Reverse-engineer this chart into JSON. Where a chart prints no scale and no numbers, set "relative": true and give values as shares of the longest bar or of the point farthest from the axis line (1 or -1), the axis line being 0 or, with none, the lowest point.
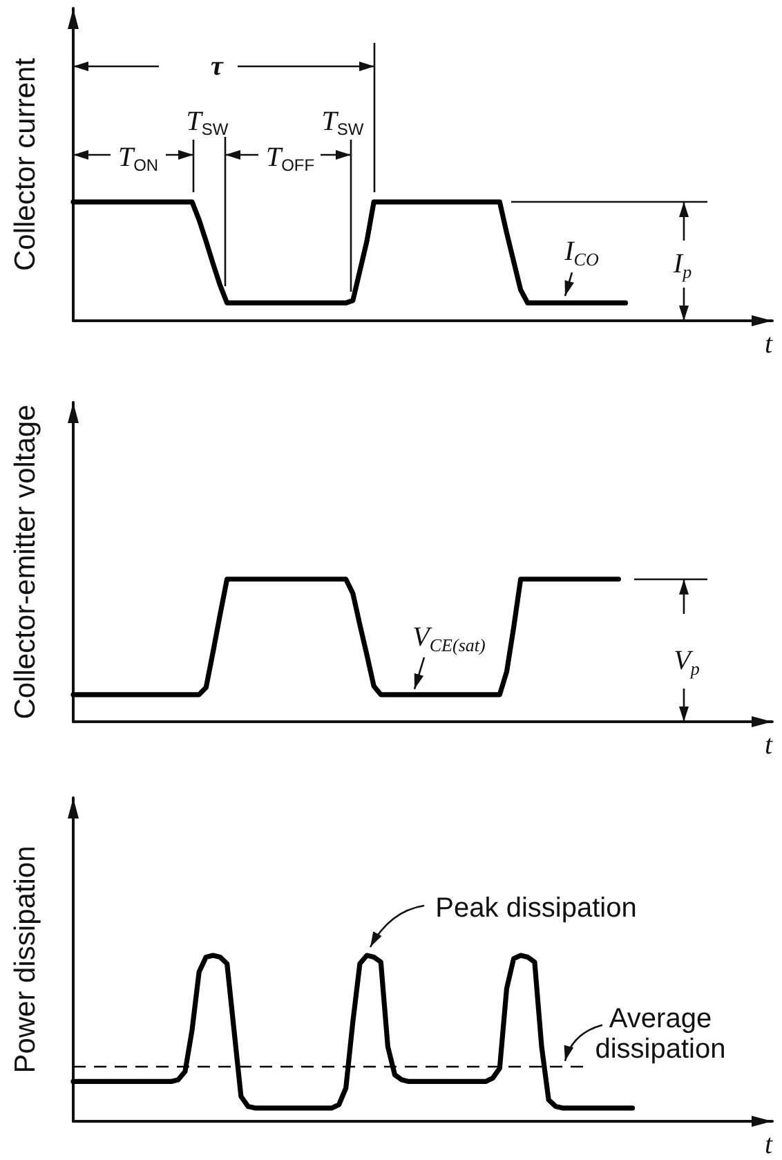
{
  "chart_data": [
    {
      "type": "line",
      "ylabel": "Collector current",
      "xlabel": "t",
      "relative": true,
      "color": "#000000",
      "categories": [
        null,
        null,
        null,
        null,
        null,
        null,
        null,
        null,
        null,
        null,
        null,
        null,
        null,
        null,
        null,
        null,
        null,
        null,
        null,
        null,
        null,
        null,
        null,
        null,
        null,
        null,
        null,
        null,
        null,
        null,
        null,
        null,
        null,
        null,
        null,
        null,
        null,
        null,
        null,
        null,
        null,
        null,
        null,
        null,
        null,
        null,
        null,
        null,
        null,
        null,
        null,
        null,
        null,
        null,
        null,
        null,
        null,
        null,
        null,
        null,
        null,
        null,
        null,
        null,
        null,
        null,
        null,
        null,
        null,
        null,
        null,
        null,
        null,
        null,
        null,
        null,
        null,
        null,
        null,
        null,
        null,
        null,
        null,
        null,
        null,
        null,
        null,
        null,
        null,
        null,
        null,
        null,
        null,
        null,
        null,
        null,
        null,
        null,
        null,
        null,
        null
      ],
      "values": [
        1,
        1,
        1,
        1,
        1,
        1,
        1,
        1,
        1,
        1,
        1,
        1,
        1,
        1,
        1,
        1,
        1,
        1,
        0.85,
        0.67,
        0.48,
        0.3,
        0.15,
        0.15,
        0.15,
        0.15,
        0.15,
        0.15,
        0.15,
        0.15,
        0.15,
        0.15,
        0.15,
        0.15,
        0.15,
        0.15,
        0.15,
        0.15,
        0.15,
        0.15,
        0.17,
        0.42,
        0.67,
        1,
        1,
        1,
        1,
        1,
        1,
        1,
        1,
        1,
        1,
        1,
        1,
        1,
        1,
        1,
        1,
        1,
        1,
        1,
        0.74,
        0.5,
        0.26,
        0.15,
        0.15,
        0.15,
        0.15,
        0.15,
        0.15,
        0.15,
        0.15,
        0.15,
        0.15,
        0.15,
        0.15,
        0.15,
        0.15,
        0.15,
        null,
        null,
        null,
        null,
        null,
        null,
        null,
        null,
        null,
        null,
        null,
        null,
        null,
        null,
        null,
        null,
        null,
        null,
        null,
        null,
        null
      ],
      "annotations": [
        "τ",
        "T$_{SW}$",
        "T$_{SW}$",
        "T$_{ON}$",
        "T$_{OFF}$",
        {
          "text": "I$_{CO}$",
          "y": 0.15
        },
        "I$_{p}$"
      ]
    },
    {
      "type": "line",
      "ylabel": "Collector-emitter voltage",
      "xlabel": "t",
      "relative": true,
      "color": "#000000",
      "categories": [
        null,
        null,
        null,
        null,
        null,
        null,
        null,
        null,
        null,
        null,
        null,
        null,
        null,
        null,
        null,
        null,
        null,
        null,
        null,
        null,
        null,
        null,
        null,
        null,
        null,
        null,
        null,
        null,
        null,
        null,
        null,
        null,
        null,
        null,
        null,
        null,
        null,
        null,
        null,
        null,
        null,
        null,
        null,
        null,
        null,
        null,
        null,
        null,
        null,
        null,
        null,
        null,
        null,
        null,
        null,
        null,
        null,
        null,
        null,
        null,
        null,
        null,
        null,
        null,
        null,
        null,
        null,
        null,
        null,
        null,
        null,
        null,
        null,
        null,
        null,
        null,
        null,
        null,
        null,
        null,
        null,
        null,
        null,
        null,
        null,
        null,
        null,
        null,
        null,
        null,
        null,
        null,
        null,
        null,
        null,
        null,
        null,
        null,
        null,
        null,
        null
      ],
      "values": [
        0.19,
        0.19,
        0.19,
        0.19,
        0.19,
        0.19,
        0.19,
        0.19,
        0.19,
        0.19,
        0.19,
        0.19,
        0.19,
        0.19,
        0.19,
        0.19,
        0.19,
        0.19,
        0.19,
        0.24,
        0.49,
        0.75,
        1,
        1,
        1,
        1,
        1,
        1,
        1,
        1,
        1,
        1,
        1,
        1,
        1,
        1,
        1,
        1,
        1,
        1,
        0.9,
        0.68,
        0.47,
        0.25,
        0.19,
        0.19,
        0.19,
        0.19,
        0.19,
        0.19,
        0.19,
        0.19,
        0.19,
        0.19,
        0.19,
        0.19,
        0.19,
        0.19,
        0.19,
        0.19,
        0.19,
        0.19,
        0.35,
        0.66,
        1,
        1,
        1,
        1,
        1,
        1,
        1,
        1,
        1,
        1,
        1,
        1,
        1,
        1,
        1,
        null,
        null,
        null,
        null,
        null,
        null,
        null,
        null,
        null,
        null,
        null,
        null,
        null,
        null,
        null,
        null,
        null,
        null,
        null,
        null,
        null,
        null
      ],
      "annotations": [
        {
          "text": "V$_{CE(sat)}$",
          "y": 0.19
        },
        "V$_{p}$"
      ]
    },
    {
      "type": "line",
      "ylabel": "Power dissipation",
      "xlabel": "t",
      "relative": true,
      "color": "#000000",
      "categories": [
        null,
        null,
        null,
        null,
        null,
        null,
        null,
        null,
        null,
        null,
        null,
        null,
        null,
        null,
        null,
        null,
        null,
        null,
        null,
        null,
        null,
        null,
        null,
        null,
        null,
        null,
        null,
        null,
        null,
        null,
        null,
        null,
        null,
        null,
        null,
        null,
        null,
        null,
        null,
        null,
        null,
        null,
        null,
        null,
        null,
        null,
        null,
        null,
        null,
        null,
        null,
        null,
        null,
        null,
        null,
        null,
        null,
        null,
        null,
        null,
        null,
        null,
        null,
        null,
        null,
        null,
        null,
        null,
        null,
        null,
        null,
        null,
        null,
        null,
        null,
        null,
        null,
        null,
        null,
        null,
        null,
        null,
        null,
        null,
        null,
        null,
        null,
        null,
        null,
        null,
        null,
        null,
        null,
        null,
        null,
        null,
        null,
        null,
        null,
        null,
        null
      ],
      "values": [
        0.24,
        0.24,
        0.24,
        0.24,
        0.24,
        0.24,
        0.24,
        0.24,
        0.24,
        0.24,
        0.24,
        0.24,
        0.24,
        0.24,
        0.24,
        0.25,
        0.3,
        0.55,
        0.9,
        0.99,
        1,
        0.99,
        0.95,
        0.55,
        0.15,
        0.09,
        0.08,
        0.08,
        0.08,
        0.08,
        0.08,
        0.08,
        0.08,
        0.08,
        0.08,
        0.08,
        0.08,
        0.08,
        0.1,
        0.2,
        0.6,
        0.95,
        1,
        0.99,
        0.96,
        0.45,
        0.28,
        0.25,
        0.24,
        0.24,
        0.24,
        0.24,
        0.24,
        0.24,
        0.24,
        0.24,
        0.24,
        0.24,
        0.24,
        0.24,
        0.26,
        0.32,
        0.8,
        0.98,
        1,
        0.99,
        0.96,
        0.45,
        0.13,
        0.09,
        0.08,
        0.08,
        0.08,
        0.08,
        0.08,
        0.08,
        0.08,
        0.08,
        0.08,
        0.08,
        0.08,
        null,
        null,
        null,
        null,
        null,
        null,
        null,
        null,
        null,
        null,
        null,
        null,
        null,
        null,
        null,
        null,
        null,
        null,
        null,
        null
      ],
      "ref_lines": [
        {
          "axis": "y",
          "value": 0.33,
          "label": "Average dissipation",
          "color": "#000000",
          "line_style": "dashed"
        }
      ],
      "annotations": [
        {
          "text": "Peak dissipation",
          "y": 1
        }
      ]
    }
  ]
}
